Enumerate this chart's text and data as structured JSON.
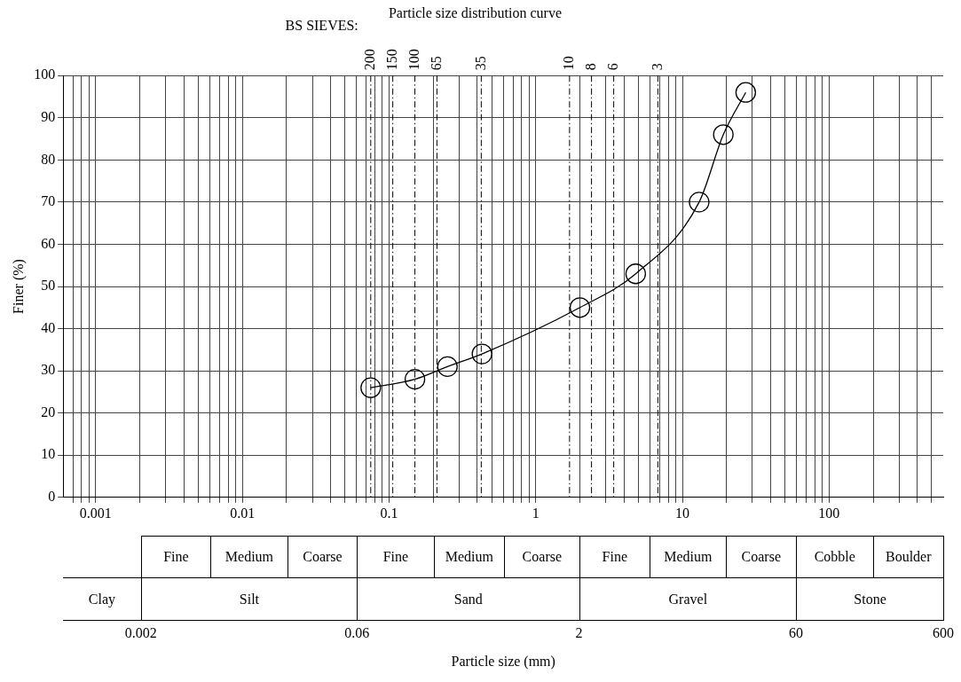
{
  "chart_data": [
    {
      "type": "line",
      "title": "Particle size distribution curve",
      "ylabel": "Finer (%)",
      "x": [
        0.075,
        0.15,
        0.25,
        0.43,
        2.0,
        4.8,
        13,
        19,
        27
      ],
      "series": [
        {
          "color": "#000000",
          "values": [
            26,
            28,
            31,
            34,
            45,
            53,
            70,
            86,
            96
          ]
        }
      ],
      "marker": "circle",
      "line_style": "solid",
      "log": "x",
      "grid": true,
      "xlim": [
        0.0006,
        600
      ],
      "ylim": [
        0,
        100
      ],
      "yticks": [
        0,
        10,
        20,
        30,
        40,
        50,
        60,
        70,
        80,
        90,
        100
      ],
      "xticks": [
        {
          "value": 0.0007,
          "label": null
        },
        {
          "value": 0.0008,
          "label": null
        },
        {
          "value": 0.0009,
          "label": null
        },
        {
          "value": 0.001,
          "label": "0.001"
        },
        {
          "value": 0.002,
          "label": null
        },
        {
          "value": 0.003,
          "label": null
        },
        {
          "value": 0.004,
          "label": null
        },
        {
          "value": 0.005,
          "label": null
        },
        {
          "value": 0.006,
          "label": null
        },
        {
          "value": 0.007,
          "label": null
        },
        {
          "value": 0.008,
          "label": null
        },
        {
          "value": 0.009,
          "label": null
        },
        {
          "value": 0.01,
          "label": "0.01"
        },
        {
          "value": 0.02,
          "label": null
        },
        {
          "value": 0.03,
          "label": null
        },
        {
          "value": 0.04,
          "label": null
        },
        {
          "value": 0.05,
          "label": null
        },
        {
          "value": 0.06,
          "label": null
        },
        {
          "value": 0.07,
          "label": null
        },
        {
          "value": 0.08,
          "label": null
        },
        {
          "value": 0.09,
          "label": null
        },
        {
          "value": 0.1,
          "label": "0.1"
        },
        {
          "value": 0.2,
          "label": null
        },
        {
          "value": 0.3,
          "label": null
        },
        {
          "value": 0.4,
          "label": null
        },
        {
          "value": 0.5,
          "label": null
        },
        {
          "value": 0.6,
          "label": null
        },
        {
          "value": 0.7,
          "label": null
        },
        {
          "value": 0.8,
          "label": null
        },
        {
          "value": 0.9,
          "label": null
        },
        {
          "value": 1,
          "label": "1"
        },
        {
          "value": 2,
          "label": null
        },
        {
          "value": 3,
          "label": null
        },
        {
          "value": 4,
          "label": null
        },
        {
          "value": 5,
          "label": null
        },
        {
          "value": 6,
          "label": null
        },
        {
          "value": 7,
          "label": null
        },
        {
          "value": 8,
          "label": null
        },
        {
          "value": 9,
          "label": null
        },
        {
          "value": 10,
          "label": "10"
        },
        {
          "value": 20,
          "label": null
        },
        {
          "value": 30,
          "label": null
        },
        {
          "value": 40,
          "label": null
        },
        {
          "value": 50,
          "label": null
        },
        {
          "value": 60,
          "label": null
        },
        {
          "value": 70,
          "label": null
        },
        {
          "value": 80,
          "label": null
        },
        {
          "value": 90,
          "label": null
        },
        {
          "value": 100,
          "label": "100"
        },
        {
          "value": 200,
          "label": null
        },
        {
          "value": 300,
          "label": null
        },
        {
          "value": 400,
          "label": null
        },
        {
          "value": 500,
          "label": null
        }
      ],
      "ref_lines": [
        {
          "axis": "x",
          "value": 0.075,
          "line_style": "dashed",
          "color": "#000000"
        },
        {
          "axis": "x",
          "value": 0.106,
          "line_style": "dashed",
          "color": "#000000"
        },
        {
          "axis": "x",
          "value": 0.15,
          "line_style": "dashed",
          "color": "#000000"
        },
        {
          "axis": "x",
          "value": 0.212,
          "line_style": "dashed",
          "color": "#000000"
        },
        {
          "axis": "x",
          "value": 0.425,
          "line_style": "dashed",
          "color": "#000000"
        },
        {
          "axis": "x",
          "value": 1.7,
          "line_style": "dashed",
          "color": "#000000"
        },
        {
          "axis": "x",
          "value": 2.4,
          "line_style": "dashed",
          "color": "#000000"
        },
        {
          "axis": "x",
          "value": 3.4,
          "line_style": "dashed",
          "color": "#000000"
        },
        {
          "axis": "x",
          "value": 6.8,
          "line_style": "dashed",
          "color": "#000000"
        }
      ],
      "annotations": [
        "BS SIEVES:",
        {
          "text": "200",
          "x": 0.075,
          "y": 100
        },
        {
          "text": "150",
          "x": 0.106,
          "y": 100
        },
        {
          "text": "100",
          "x": 0.15,
          "y": 100
        },
        {
          "text": "65",
          "x": 0.212,
          "y": 100
        },
        {
          "text": "35",
          "x": 0.425,
          "y": 100
        },
        {
          "text": "10",
          "x": 1.7,
          "y": 100
        },
        {
          "text": "8",
          "x": 2.4,
          "y": 100
        },
        {
          "text": "6",
          "x": 3.4,
          "y": 100
        },
        {
          "text": "3",
          "x": 6.8,
          "y": 100
        }
      ]
    },
    {
      "type": "other",
      "annotations": [
        "Fine",
        "Medium",
        "Coarse",
        "Fine",
        "Medium",
        "Coarse",
        "Fine",
        "Medium",
        "Coarse",
        "Cobble",
        "Boulder",
        "Clay",
        "Silt",
        "Sand",
        "Gravel",
        "Stone",
        "0.002",
        "0.06",
        "2",
        "60",
        "600",
        "Particle size (mm)"
      ]
    }
  ]
}
